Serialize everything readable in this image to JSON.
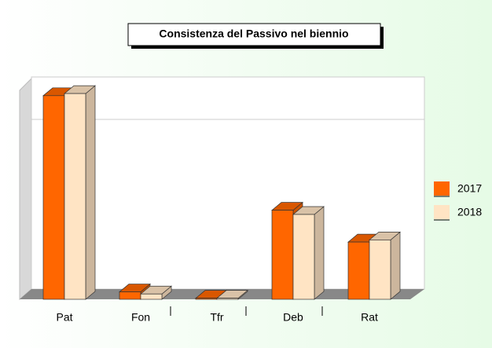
{
  "chart_data": {
    "type": "bar3d",
    "title": "Consistenza del Passivo nel biennio",
    "categories": [
      "Pat",
      "Fon",
      "Tfr",
      "Deb",
      "Rat"
    ],
    "series": [
      {
        "name": "2017",
        "color": "#ff6600",
        "values": [
          96,
          3.5,
          0.5,
          42,
          27
        ]
      },
      {
        "name": "2018",
        "color": "#ffe4c4",
        "values": [
          97,
          2.5,
          0.5,
          40,
          28
        ]
      }
    ],
    "ylim": [
      0,
      100
    ],
    "legend": "right"
  }
}
